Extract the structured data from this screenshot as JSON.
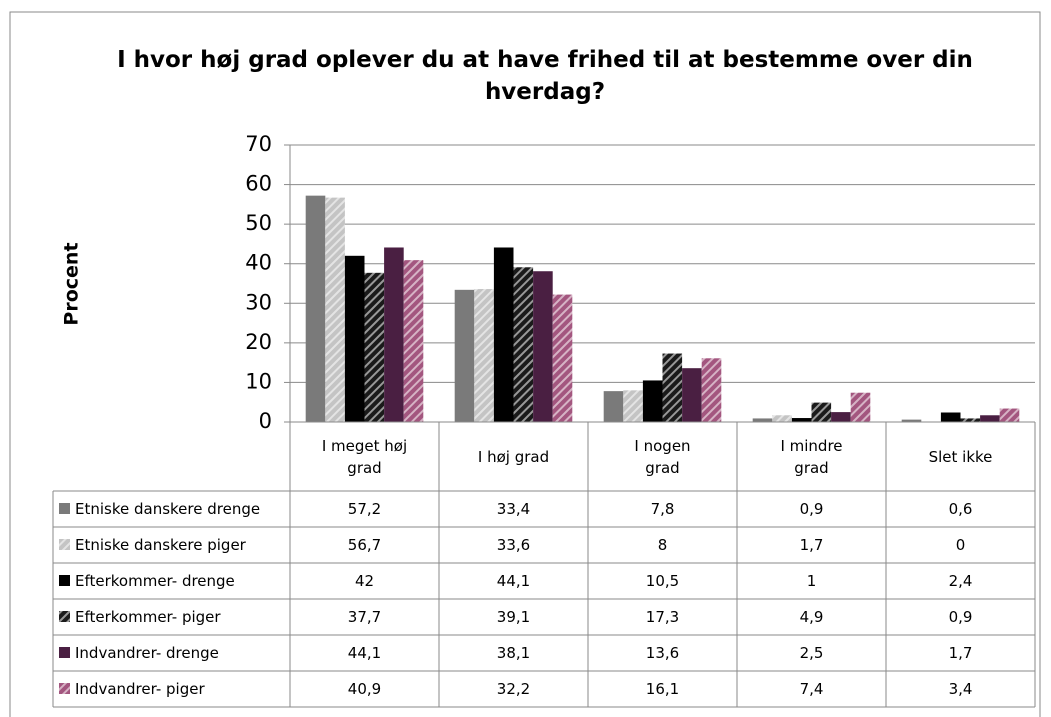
{
  "chart_data": {
    "type": "bar",
    "title": "I hvor høj grad oplever du at have frihed til at bestemme over din hverdag?",
    "y_label": "Procent",
    "categories": [
      "I meget høj grad",
      "I høj grad",
      "I nogen grad",
      "I mindre grad",
      "Slet ikke"
    ],
    "ylim": [
      0,
      70
    ],
    "yticks": [
      0,
      10,
      20,
      30,
      40,
      50,
      60,
      70
    ],
    "grid": true,
    "series": [
      {
        "name": "Etniske danskere drenge",
        "color": "#7a7a7a",
        "hatch": false,
        "values": [
          57.2,
          33.4,
          7.8,
          0.9,
          0.6
        ],
        "value_labels": [
          "57,2",
          "33,4",
          "7,8",
          "0,9",
          "0,6"
        ]
      },
      {
        "name": "Etniske danskere piger",
        "color": "#c4c4c4",
        "hatch": true,
        "values": [
          56.7,
          33.6,
          8,
          1.7,
          0
        ],
        "value_labels": [
          "56,7",
          "33,6",
          "8",
          "1,7",
          "0"
        ]
      },
      {
        "name": "Efterkommer- drenge",
        "color": "#000000",
        "hatch": false,
        "values": [
          42,
          44.1,
          10.5,
          1,
          2.4
        ],
        "value_labels": [
          "42",
          "44,1",
          "10,5",
          "1",
          "2,4"
        ]
      },
      {
        "name": "Efterkommer- piger",
        "color": "#1a1a1a",
        "hatch": true,
        "values": [
          37.7,
          39.1,
          17.3,
          4.9,
          0.9
        ],
        "value_labels": [
          "37,7",
          "39,1",
          "17,3",
          "4,9",
          "0,9"
        ]
      },
      {
        "name": "Indvandrer- drenge",
        "color": "#4a1f42",
        "hatch": false,
        "values": [
          44.1,
          38.1,
          13.6,
          2.5,
          1.7
        ],
        "value_labels": [
          "44,1",
          "38,1",
          "13,6",
          "2,5",
          "1,7"
        ]
      },
      {
        "name": "Indvandrer- piger",
        "color": "#a3567f",
        "hatch": true,
        "values": [
          40.9,
          32.2,
          16.1,
          7.4,
          3.4
        ],
        "value_labels": [
          "40,9",
          "32,2",
          "16,1",
          "7,4",
          "3,4"
        ]
      }
    ]
  }
}
